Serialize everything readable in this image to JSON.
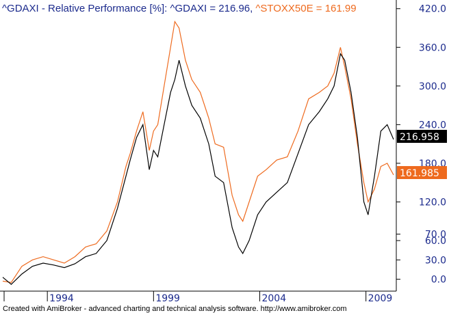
{
  "title": {
    "prefix": "^GDAXI - Relative Performance [%]: ",
    "series1": "^GDAXI = 216.96,",
    "series2": "^STOXX50E = 161.99"
  },
  "footer": "Created with AmiBroker - advanced charting and technical analysis software. http://www.amibroker.com",
  "colors": {
    "gdaxi": "#000000",
    "stoxx": "#ee6a1e",
    "axis_text": "#1b2a8c",
    "background": "#ffffff",
    "grid": "#c8c8c8"
  },
  "last_values": {
    "gdaxi": "216.958",
    "stoxx": "161.985"
  },
  "chart_data": {
    "type": "line",
    "title": "^GDAXI - Relative Performance [%]: ^GDAXI = 216.96, ^STOXX50E = 161.99",
    "xlabel": "",
    "ylabel": "",
    "x_ticks": [
      "1994",
      "1999",
      "2004",
      "2009"
    ],
    "x_tick_values": [
      1994,
      1999,
      2004,
      2009
    ],
    "y_ticks": [
      "420.0",
      "360.0",
      "300.0",
      "240.0",
      "180.0",
      "120.0",
      "70.0",
      "60.0",
      "30.0",
      "0.0"
    ],
    "xlim": [
      1991.9,
      2010.3
    ],
    "ylim": [
      -10,
      425
    ],
    "grid": false,
    "series": [
      {
        "name": "^GDAXI",
        "color": "#000000",
        "x": [
          1991.9,
          1992.3,
          1992.8,
          1993.3,
          1993.8,
          1994.3,
          1994.8,
          1995.3,
          1995.8,
          1996.3,
          1996.8,
          1997.3,
          1997.7,
          1997.9,
          1998.2,
          1998.5,
          1998.8,
          1999.0,
          1999.2,
          1999.5,
          1999.8,
          2000.0,
          2000.2,
          2000.5,
          2000.8,
          2001.2,
          2001.6,
          2001.9,
          2002.3,
          2002.7,
          2003.0,
          2003.2,
          2003.5,
          2003.9,
          2004.3,
          2004.8,
          2005.3,
          2005.8,
          2006.3,
          2006.8,
          2007.2,
          2007.5,
          2007.8,
          2008.0,
          2008.3,
          2008.6,
          2008.9,
          2009.1,
          2009.4,
          2009.7,
          2010.0,
          2010.3
        ],
        "values": [
          3,
          -8,
          8,
          20,
          25,
          22,
          18,
          24,
          35,
          40,
          60,
          110,
          160,
          185,
          220,
          240,
          170,
          200,
          190,
          240,
          290,
          310,
          340,
          300,
          270,
          250,
          210,
          160,
          150,
          80,
          50,
          40,
          60,
          100,
          120,
          135,
          150,
          195,
          240,
          260,
          280,
          300,
          350,
          340,
          290,
          220,
          120,
          100,
          160,
          230,
          240,
          217
        ]
      },
      {
        "name": "^STOXX50E",
        "color": "#ee6a1e",
        "x": [
          1991.9,
          1992.3,
          1992.8,
          1993.3,
          1993.8,
          1994.3,
          1994.8,
          1995.3,
          1995.8,
          1996.3,
          1996.8,
          1997.3,
          1997.7,
          1997.9,
          1998.2,
          1998.5,
          1998.8,
          1999.0,
          1999.2,
          1999.5,
          1999.8,
          2000.0,
          2000.2,
          2000.5,
          2000.8,
          2001.2,
          2001.6,
          2001.9,
          2002.3,
          2002.7,
          2003.0,
          2003.2,
          2003.5,
          2003.9,
          2004.3,
          2004.8,
          2005.3,
          2005.8,
          2006.3,
          2006.8,
          2007.2,
          2007.5,
          2007.8,
          2008.0,
          2008.3,
          2008.6,
          2008.9,
          2009.1,
          2009.4,
          2009.7,
          2010.0,
          2010.3
        ],
        "values": [
          -3,
          -5,
          20,
          30,
          35,
          30,
          25,
          35,
          50,
          55,
          75,
          120,
          175,
          195,
          230,
          260,
          200,
          230,
          240,
          300,
          360,
          400,
          390,
          340,
          310,
          290,
          250,
          210,
          205,
          130,
          100,
          90,
          120,
          160,
          170,
          185,
          190,
          230,
          280,
          290,
          300,
          320,
          360,
          330,
          280,
          210,
          150,
          120,
          140,
          175,
          180,
          162
        ]
      }
    ]
  }
}
